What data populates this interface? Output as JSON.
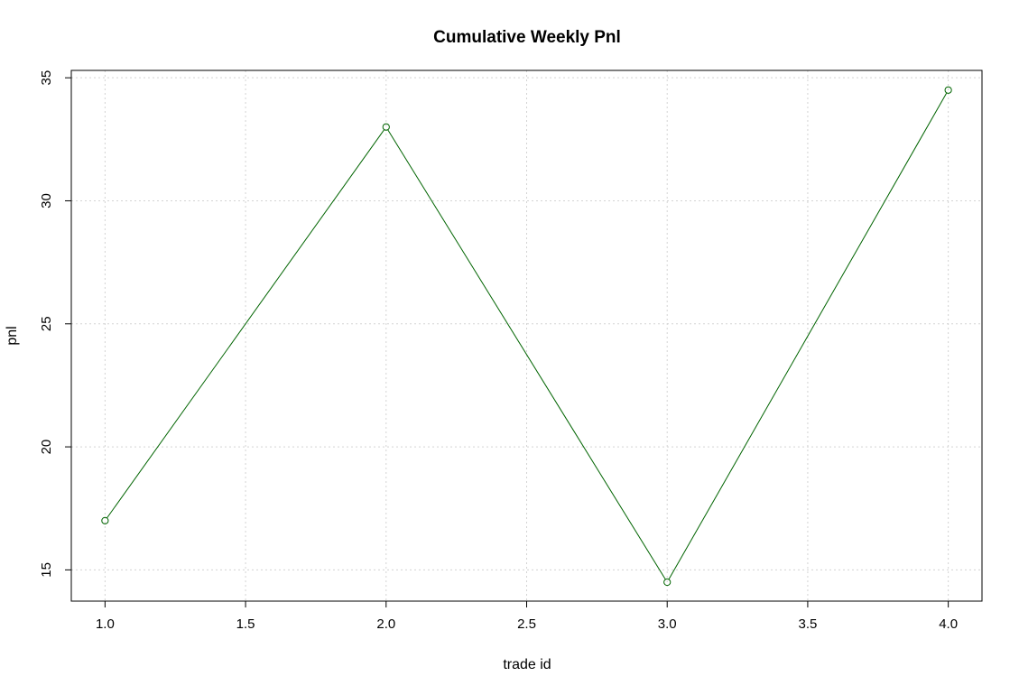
{
  "chart_data": {
    "type": "line",
    "title": "Cumulative Weekly Pnl",
    "xlabel": "trade id",
    "ylabel": "pnl",
    "x": [
      1,
      2,
      3,
      4
    ],
    "series": [
      {
        "values": [
          17.0,
          33.0,
          14.5,
          34.5
        ]
      }
    ],
    "xlim": [
      0.88,
      4.12
    ],
    "ylim": [
      13.73,
      35.3
    ],
    "xticks": [
      "1.0",
      "1.5",
      "2.0",
      "2.5",
      "3.0",
      "3.5",
      "4.0"
    ],
    "yticks": [
      "15",
      "20",
      "25",
      "30",
      "35"
    ],
    "grid": true,
    "marker": "open-circle",
    "colors": {
      "line": "#006400",
      "grid": "#d3d3d3",
      "axis": "#000000"
    }
  }
}
